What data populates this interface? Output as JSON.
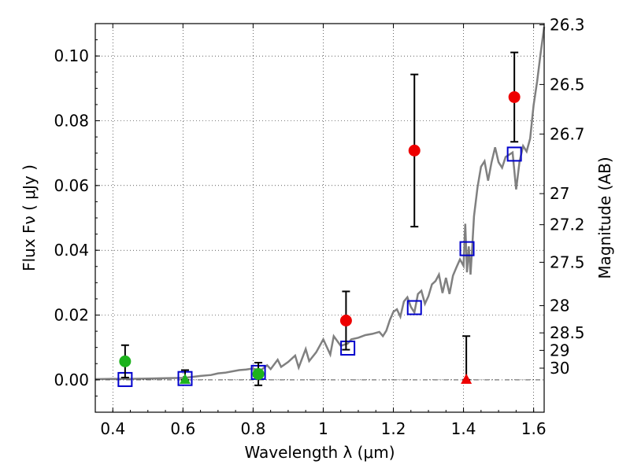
{
  "chart_data": {
    "type": "scatter",
    "xlabel": "Wavelength  λ (μm)",
    "ylabel": "Flux  Fν  ( μJy )",
    "y2label": "Magnitude (AB)",
    "xlim": [
      0.35,
      1.63
    ],
    "ylim": [
      -0.01,
      0.11
    ],
    "x_ticks": [
      0.4,
      0.6,
      0.8,
      1.0,
      1.2,
      1.4,
      1.6
    ],
    "x_tick_labels": [
      "0.4",
      "0.6",
      "0.8",
      "1",
      "1.2",
      "1.4",
      "1.6"
    ],
    "y_ticks": [
      0.0,
      0.02,
      0.04,
      0.06,
      0.08,
      0.1
    ],
    "y_tick_labels": [
      "0.00",
      "0.02",
      "0.04",
      "0.06",
      "0.08",
      "0.10"
    ],
    "mag_ticks": [
      {
        "label": "26.3",
        "flux": 0.1096
      },
      {
        "label": "26.5",
        "flux": 0.0912
      },
      {
        "label": "26.7",
        "flux": 0.0759
      },
      {
        "label": "27",
        "flux": 0.0575
      },
      {
        "label": "27.2",
        "flux": 0.0479
      },
      {
        "label": "27.5",
        "flux": 0.0363
      },
      {
        "label": "28",
        "flux": 0.0229
      },
      {
        "label": "28.5",
        "flux": 0.0145
      },
      {
        "label": "29",
        "flux": 0.0091
      },
      {
        "label": "30",
        "flux": 0.0036
      }
    ],
    "grid": true,
    "colors": {
      "model": "#808080",
      "green": "#1db31d",
      "red": "#ee0000",
      "blue": "#0000cc"
    },
    "observed_green": [
      {
        "x": 0.435,
        "y": 0.0057,
        "yerr": 0.005
      },
      {
        "x": 0.815,
        "y": 0.0018,
        "yerr": 0.0035
      }
    ],
    "observed_red": [
      {
        "x": 1.065,
        "y": 0.0183,
        "yerr": 0.009
      },
      {
        "x": 1.26,
        "y": 0.0708,
        "yerr": 0.0235
      },
      {
        "x": 1.545,
        "y": 0.0873,
        "yerr": 0.0138
      }
    ],
    "upper_limits_green": [
      {
        "x": 0.606,
        "y": 0.0,
        "err_top": 0.003
      }
    ],
    "upper_limits_red": [
      {
        "x": 1.408,
        "y": 0.0,
        "err_top": 0.0135
      }
    ],
    "model_photometry": [
      {
        "x": 0.435,
        "y": 0.0001
      },
      {
        "x": 0.606,
        "y": 0.0004
      },
      {
        "x": 0.815,
        "y": 0.0023
      },
      {
        "x": 1.07,
        "y": 0.0098
      },
      {
        "x": 1.26,
        "y": 0.0223
      },
      {
        "x": 1.41,
        "y": 0.0405
      },
      {
        "x": 1.545,
        "y": 0.0697
      }
    ],
    "model_spectrum": {
      "x": [
        0.35,
        0.4,
        0.45,
        0.5,
        0.55,
        0.6,
        0.62,
        0.65,
        0.68,
        0.7,
        0.72,
        0.74,
        0.76,
        0.78,
        0.8,
        0.82,
        0.84,
        0.85,
        0.87,
        0.88,
        0.9,
        0.92,
        0.93,
        0.95,
        0.96,
        0.98,
        1.0,
        1.02,
        1.03,
        1.05,
        1.07,
        1.08,
        1.1,
        1.12,
        1.14,
        1.16,
        1.17,
        1.18,
        1.19,
        1.2,
        1.21,
        1.22,
        1.23,
        1.24,
        1.25,
        1.26,
        1.27,
        1.28,
        1.29,
        1.3,
        1.31,
        1.32,
        1.33,
        1.34,
        1.35,
        1.36,
        1.37,
        1.38,
        1.39,
        1.4,
        1.405,
        1.41,
        1.415,
        1.42,
        1.425,
        1.43,
        1.44,
        1.45,
        1.46,
        1.47,
        1.48,
        1.49,
        1.5,
        1.51,
        1.52,
        1.53,
        1.54,
        1.55,
        1.56,
        1.57,
        1.58,
        1.59,
        1.6,
        1.61,
        1.62,
        1.63
      ],
      "y": [
        0.0002,
        0.0003,
        0.0003,
        0.0004,
        0.0005,
        0.0006,
        0.0008,
        0.0012,
        0.0015,
        0.002,
        0.0022,
        0.0026,
        0.003,
        0.0032,
        0.0035,
        0.0028,
        0.0045,
        0.0033,
        0.0062,
        0.004,
        0.0055,
        0.0075,
        0.0038,
        0.0095,
        0.0058,
        0.0085,
        0.0125,
        0.0078,
        0.0135,
        0.0105,
        0.0112,
        0.0125,
        0.013,
        0.0138,
        0.0142,
        0.0148,
        0.0135,
        0.0152,
        0.0185,
        0.021,
        0.0218,
        0.0195,
        0.0242,
        0.0255,
        0.0225,
        0.0208,
        0.0265,
        0.0275,
        0.0235,
        0.0258,
        0.0295,
        0.0305,
        0.0325,
        0.0268,
        0.0315,
        0.0265,
        0.0322,
        0.0348,
        0.0372,
        0.0352,
        0.0482,
        0.0332,
        0.0412,
        0.0325,
        0.0412,
        0.0505,
        0.0595,
        0.0658,
        0.0675,
        0.0615,
        0.0672,
        0.0718,
        0.0672,
        0.0655,
        0.0688,
        0.0695,
        0.0702,
        0.0588,
        0.0675,
        0.0722,
        0.0705,
        0.0745,
        0.0848,
        0.0922,
        0.1008,
        0.109
      ]
    }
  }
}
